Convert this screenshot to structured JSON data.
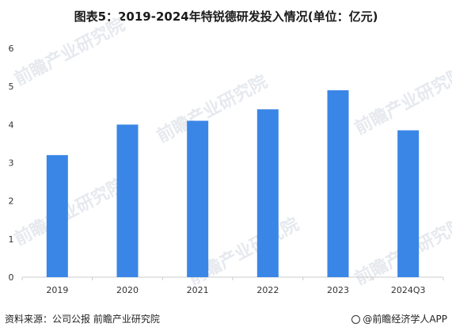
{
  "title": "图表5：2019-2024年特锐德研发投入情况(单位：亿元)",
  "watermark_text": "前瞻产业研究院",
  "footer": {
    "source": "资料来源：公司公报 前瞻产业研究院",
    "brand": "@前瞻经济学人APP"
  },
  "colors": {
    "bar": "#3a86e6",
    "axis": "#cccccc",
    "text": "#333333"
  },
  "chart_data": {
    "type": "bar",
    "title": "图表5：2019-2024年特锐德研发投入情况(单位：亿元)",
    "categories": [
      "2019",
      "2020",
      "2021",
      "2022",
      "2023",
      "2024Q3"
    ],
    "values": [
      3.2,
      4.0,
      4.1,
      4.4,
      4.9,
      3.85
    ],
    "ylim": [
      0,
      6
    ],
    "yticks": [
      "0",
      "1",
      "2",
      "3",
      "4",
      "5",
      "6"
    ],
    "xlabel": "",
    "ylabel": "",
    "grid": false,
    "legend": "none"
  }
}
